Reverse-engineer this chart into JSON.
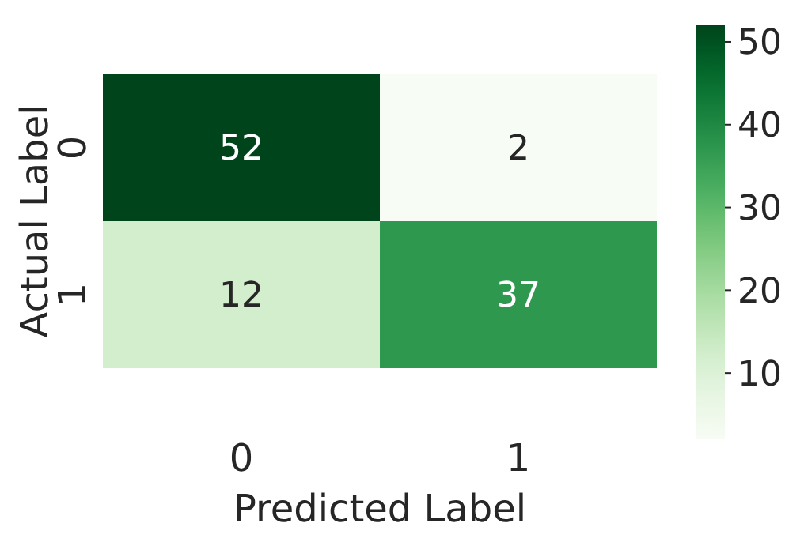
{
  "chart_data": {
    "type": "heatmap",
    "xlabel": "Predicted Label",
    "ylabel": "Actual Label",
    "categories": [
      "0",
      "1"
    ],
    "y_categories": [
      "0",
      "1"
    ],
    "cells": [
      [
        52,
        2
      ],
      [
        12,
        37
      ]
    ],
    "data_labels": true,
    "clim": [
      2,
      52
    ],
    "cticks": [
      10,
      20,
      30,
      40,
      50
    ]
  }
}
